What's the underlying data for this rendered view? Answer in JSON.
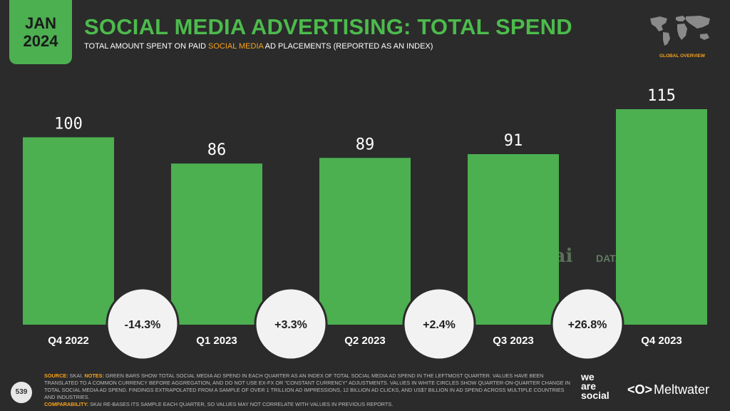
{
  "badge": {
    "month": "JAN",
    "year": "2024"
  },
  "header": {
    "title": "SOCIAL MEDIA ADVERTISING: TOTAL SPEND",
    "subtitle_pre": "TOTAL AMOUNT SPENT ON PAID ",
    "subtitle_hl": "SOCIAL MEDIA",
    "subtitle_post": " AD PLACEMENTS (REPORTED AS AN INDEX)",
    "overview": "GLOBAL OVERVIEW"
  },
  "colors": {
    "bar": "#4caf50",
    "accent": "#f7a31c",
    "background": "#2b2b2b"
  },
  "chart_data": {
    "type": "bar",
    "categories": [
      "Q4 2022",
      "Q1 2023",
      "Q2 2023",
      "Q3 2023",
      "Q4 2023"
    ],
    "values": [
      100,
      86,
      89,
      91,
      115
    ],
    "changes": [
      "-14.3%",
      "+3.3%",
      "+2.4%",
      "+26.8%"
    ],
    "ylim": [
      0,
      115
    ]
  },
  "watermark": {
    "skai": "skai",
    "datareportal": "DATAREPORTAL"
  },
  "footer": {
    "page": "539",
    "source_label": "SOURCE:",
    "source_text": " SKAI. ",
    "notes_label": "NOTES:",
    "notes_text": " GREEN BARS SHOW TOTAL SOCIAL MEDIA AD SPEND IN EACH QUARTER AS AN INDEX OF TOTAL SOCIAL MEDIA AD SPEND IN THE LEFTMOST QUARTER. VALUES HAVE BEEN TRANSLATED TO A COMMON CURRENCY BEFORE AGGREGATION, AND DO NOT USE EX-FX OR \"CONSTANT CURRENCY\" ADJUSTMENTS. VALUES IN WHITE CIRCLES SHOW QUARTER-ON-QUARTER CHANGE IN TOTAL SOCIAL MEDIA AD SPEND. FINDINGS EXTRAPOLATED FROM A SAMPLE OF OVER 1 TRILLION AD IMPRESSIONS, 12 BILLION AD CLICKS, AND US$7 BILLION IN AD SPEND ACROSS MULTIPLE COUNTRIES AND INDUSTRIES.",
    "comp_label": "COMPARABILITY:",
    "comp_text": " SKAI RE-BASES ITS SAMPLE EACH QUARTER, SO VALUES MAY NOT CORRELATE WITH VALUES IN PREVIOUS REPORTS.",
    "brand_we": "we",
    "brand_are": "are",
    "brand_social": "social",
    "meltwater": "Meltwater"
  }
}
